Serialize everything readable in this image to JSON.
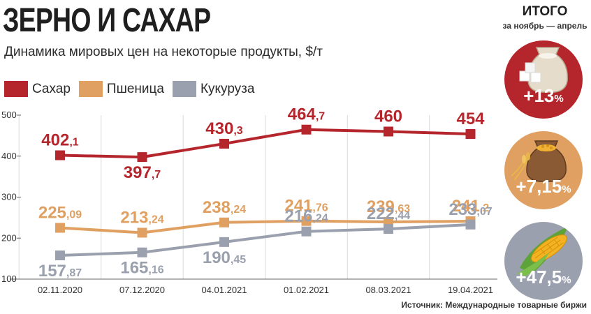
{
  "header": {
    "title": "ЗЕРНО И САХАР",
    "subtitle": "Динамика мировых цен на некоторые продукты, $/т"
  },
  "legend": [
    {
      "label": "Сахар",
      "color": "#b5262c"
    },
    {
      "label": "Пшеница",
      "color": "#e0a062"
    },
    {
      "label": "Кукуруза",
      "color": "#9aa0ad"
    }
  ],
  "source": "Источник: Международные товарные биржи",
  "chart_data": {
    "type": "line",
    "title": "Динамика мировых цен на некоторые продукты, $/т",
    "categories": [
      "02.11.2020",
      "07.12.2020",
      "04.01.2021",
      "01.02.2021",
      "08.03.2021",
      "19.04.2021"
    ],
    "yticks": [
      "500",
      "400",
      "300",
      "200",
      "100"
    ],
    "ylim": [
      100,
      500
    ],
    "grid": "vertical",
    "series": [
      {
        "name": "Сахар",
        "color": "#b5262c",
        "values": [
          402.1,
          397.7,
          430.3,
          464.7,
          460,
          454
        ],
        "labels": [
          [
            "402",
            ",1"
          ],
          [
            "397",
            ",7"
          ],
          [
            "430",
            ",3"
          ],
          [
            "464",
            ",7"
          ],
          [
            "460",
            ""
          ],
          [
            "454",
            ""
          ]
        ]
      },
      {
        "name": "Пшеница",
        "color": "#e0a062",
        "values": [
          225.09,
          213.24,
          238.24,
          241.76,
          239.63,
          241.2
        ],
        "labels": [
          [
            "225",
            ",09"
          ],
          [
            "213",
            ",24"
          ],
          [
            "238",
            ",24"
          ],
          [
            "241",
            ",76"
          ],
          [
            "239",
            ",63"
          ],
          [
            "241",
            ",2"
          ]
        ]
      },
      {
        "name": "Кукуруза",
        "color": "#9aa0ad",
        "values": [
          157.87,
          165.16,
          190.45,
          216.24,
          222.44,
          233.07
        ],
        "labels": [
          [
            "157",
            ",87"
          ],
          [
            "165",
            ",16"
          ],
          [
            "190",
            ",45"
          ],
          [
            "216",
            ",24"
          ],
          [
            "222",
            ",44"
          ],
          [
            "233",
            ",07"
          ]
        ]
      }
    ]
  },
  "summary": {
    "title": "ИТОГО",
    "period": "за ноябрь — апрель",
    "items": [
      {
        "product": "sugar",
        "icon": "sugar-sack-icon",
        "value": "+13",
        "unit": "%",
        "color": "#b5262c"
      },
      {
        "product": "wheat",
        "icon": "wheat-sack-icon",
        "value": "+7,15",
        "unit": "%",
        "color": "#e0a062"
      },
      {
        "product": "corn",
        "icon": "corn-cob-icon",
        "value": "+47,5",
        "unit": "%",
        "color": "#9aa0ad"
      }
    ]
  }
}
